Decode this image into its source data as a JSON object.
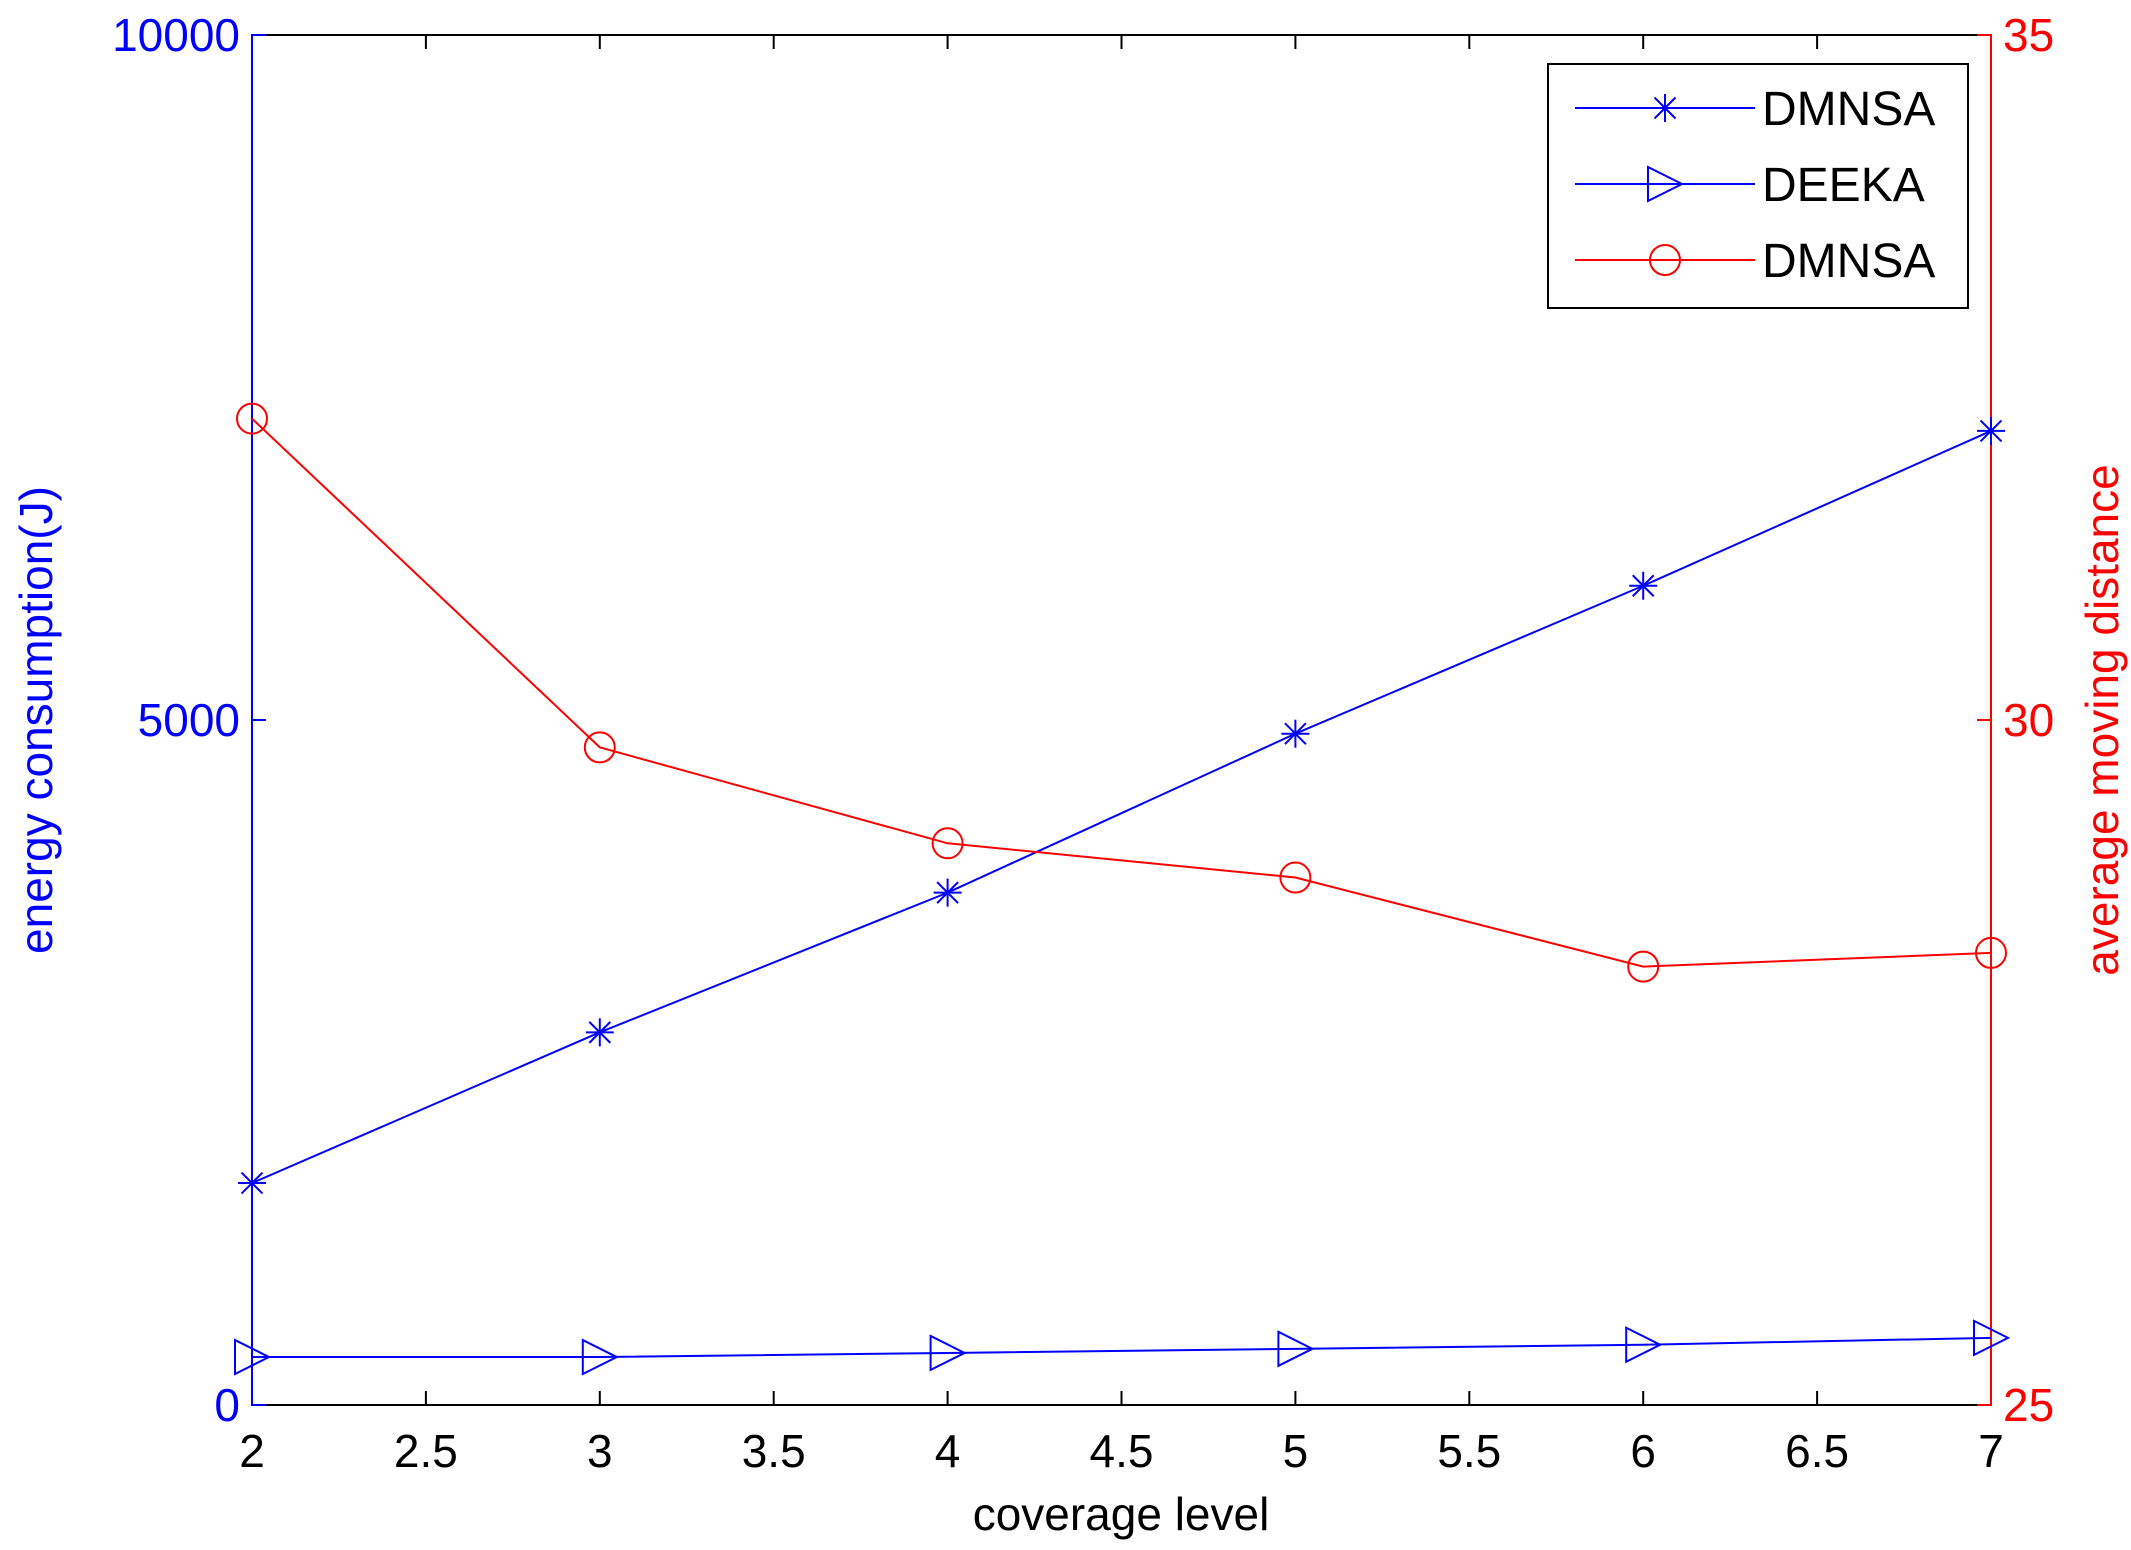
{
  "chart_data": {
    "type": "line",
    "xlabel": "coverage level",
    "ylabel_left": "energy consumption(J)",
    "ylabel_right": "average moving distance",
    "xlim": [
      2,
      7
    ],
    "ylim_left": [
      0,
      10000
    ],
    "ylim_right": [
      25,
      35
    ],
    "x_ticks": [
      "2",
      "2.5",
      "3",
      "3.5",
      "4",
      "4.5",
      "5",
      "5.5",
      "6",
      "6.5",
      "7"
    ],
    "y_left_ticks": [
      "0",
      "5000",
      "10000"
    ],
    "y_right_ticks": [
      "25",
      "30",
      "35"
    ],
    "grid": false,
    "legend_position": "top-right",
    "left_axis_color": "#0000ff",
    "right_axis_color": "#ff0000",
    "series": [
      {
        "name": "DMNSA",
        "axis": "left",
        "color": "#0000ff",
        "marker": "asterisk",
        "x": [
          2,
          3,
          4,
          5,
          6,
          7
        ],
        "values": [
          1620,
          2720,
          3740,
          4900,
          5980,
          7110
        ]
      },
      {
        "name": "DEEKA",
        "axis": "left",
        "color": "#0000ff",
        "marker": "triangle-right",
        "x": [
          2,
          3,
          4,
          5,
          6,
          7
        ],
        "values": [
          350,
          350,
          380,
          410,
          440,
          490
        ]
      },
      {
        "name": "DMNSA",
        "axis": "right",
        "color": "#ff0000",
        "marker": "circle",
        "x": [
          2,
          3,
          4,
          5,
          6,
          7
        ],
        "values": [
          32.2,
          29.8,
          29.1,
          28.85,
          28.2,
          28.3
        ]
      }
    ]
  }
}
